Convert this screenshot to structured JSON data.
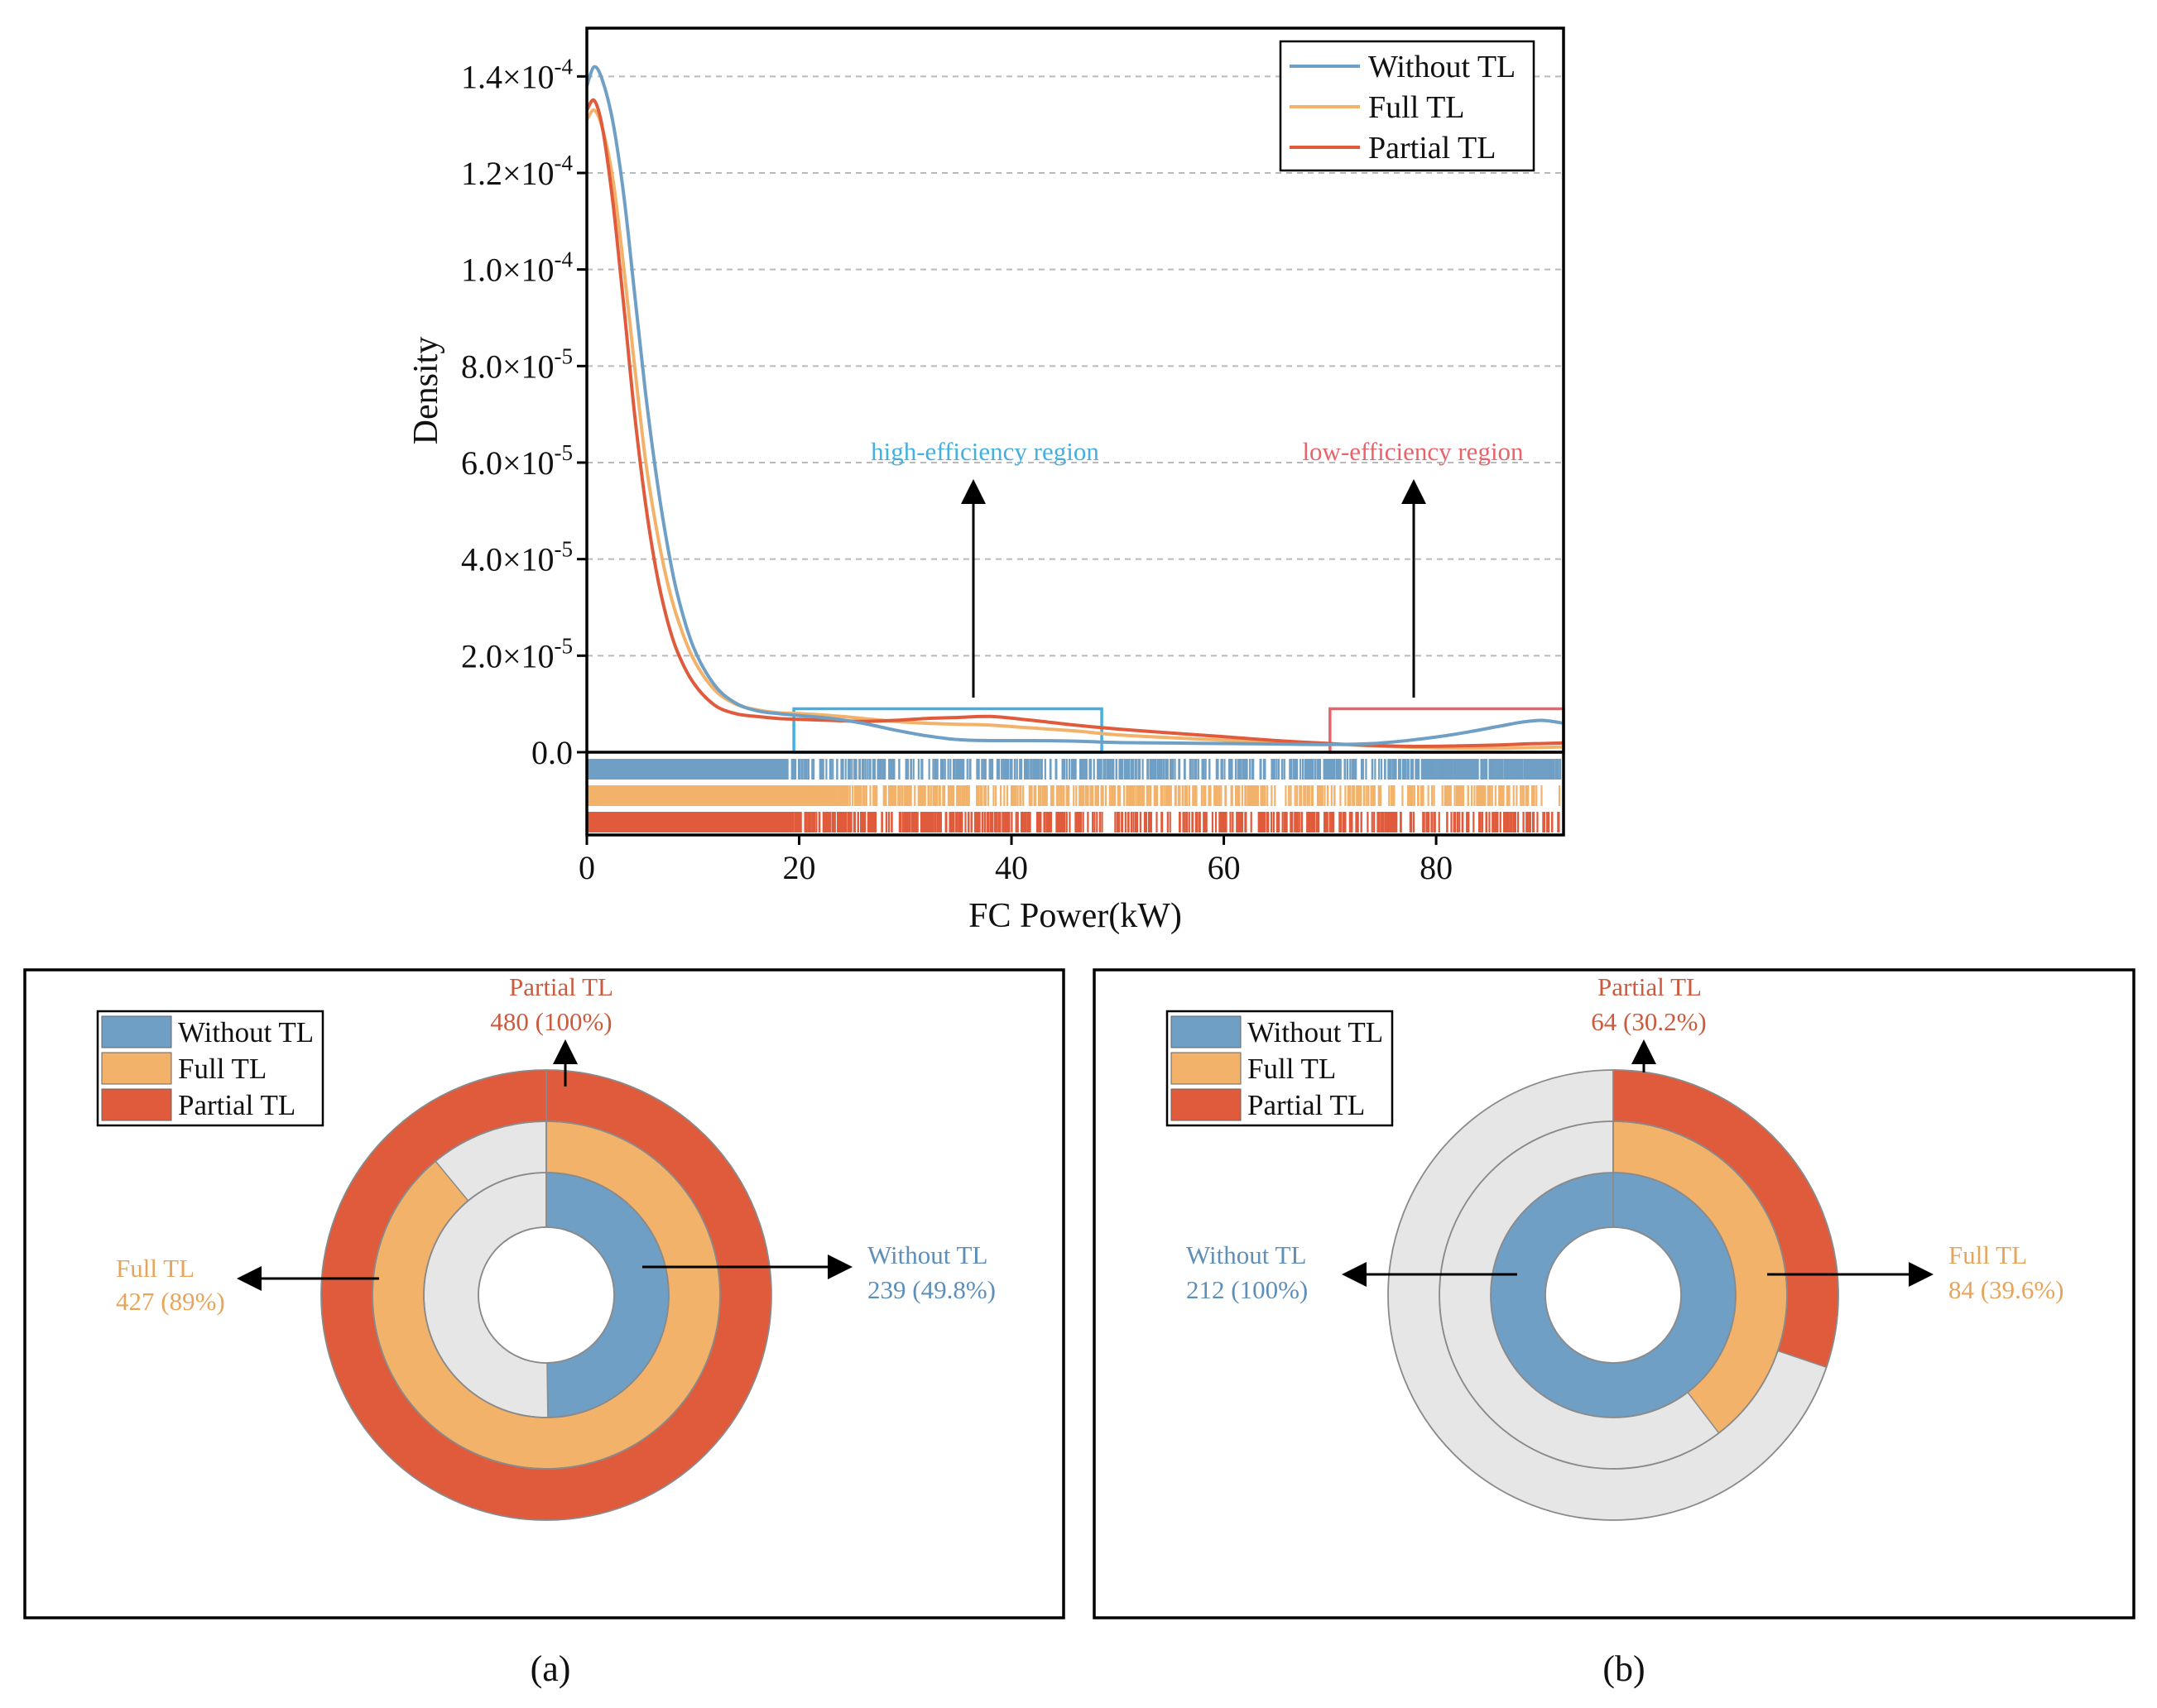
{
  "colors": {
    "without": "#6f9fc4",
    "full": "#f3b26a",
    "partial": "#e05a3c",
    "rest": "#e6e6e6",
    "high_region": "#45b0e0",
    "low_region": "#e8646c",
    "without_text": "#5d8fb9",
    "full_text": "#e6a55b",
    "partial_text": "#cc5a3f"
  },
  "chart_data": [
    {
      "type": "line",
      "title": "",
      "xlabel": "FC Power(kW)",
      "ylabel": "Density",
      "xlim": [
        0,
        92
      ],
      "ylim": [
        -1.8e-05,
        0.00015
      ],
      "x_ticks": [
        0,
        20,
        40,
        60,
        80
      ],
      "x_tick_labels": [
        "0",
        "20",
        "40",
        "60",
        "80"
      ],
      "y_ticks": [
        0,
        2e-05,
        4e-05,
        6e-05,
        8e-05,
        0.0001,
        0.00012,
        0.00014
      ],
      "y_tick_labels": [
        {
          "mant": "0.0",
          "exp": ""
        },
        {
          "mant": "2.0×10",
          "exp": "-5"
        },
        {
          "mant": "4.0×10",
          "exp": "-5"
        },
        {
          "mant": "6.0×10",
          "exp": "-5"
        },
        {
          "mant": "8.0×10",
          "exp": "-5"
        },
        {
          "mant": "1.0×10",
          "exp": "-4"
        },
        {
          "mant": "1.2×10",
          "exp": "-4"
        },
        {
          "mant": "1.4×10",
          "exp": "-4"
        }
      ],
      "grid": "horizontal dashed",
      "legend_position": "top-right",
      "series": [
        {
          "name": "Without TL",
          "key": "without",
          "x": [
            0,
            0.7,
            1.5,
            2.5,
            3.5,
            4.5,
            5.5,
            6.5,
            7.5,
            8.5,
            10,
            12,
            14,
            16,
            18,
            20,
            23,
            26,
            29,
            32,
            35,
            38,
            42,
            46,
            50,
            55,
            60,
            65,
            70,
            74,
            78,
            82,
            86,
            88,
            90,
            92
          ],
          "y": [
            0.000138,
            0.000142,
            0.000139,
            0.00013,
            0.000115,
            9.5e-05,
            7.5e-05,
            5.8e-05,
            4.4e-05,
            3.3e-05,
            2.2e-05,
            1.4e-05,
            1.02e-05,
            8.6e-06,
            8e-06,
            7.6e-06,
            7e-06,
            6e-06,
            4.6e-06,
            3.4e-06,
            2.6e-06,
            2.4e-06,
            2.4e-06,
            2.3e-06,
            2e-06,
            1.9e-06,
            1.8e-06,
            1.7e-06,
            1.6e-06,
            1.8e-06,
            2.6e-06,
            3.8e-06,
            5.4e-06,
            6.2e-06,
            6.6e-06,
            6e-06
          ]
        },
        {
          "name": "Full TL",
          "key": "full",
          "x": [
            0,
            0.7,
            1.5,
            2.5,
            3.5,
            4.5,
            5.5,
            6.5,
            7.5,
            8.5,
            10,
            12,
            14,
            16,
            18,
            20,
            23,
            26,
            29,
            32,
            35,
            38,
            42,
            46,
            50,
            55,
            60,
            65,
            70,
            74,
            78,
            82,
            86,
            88,
            90,
            92
          ],
          "y": [
            0.000131,
            0.000133,
            0.000129,
            0.000118,
            0.0001,
            8e-05,
            6.1e-05,
            4.7e-05,
            3.6e-05,
            2.8e-05,
            1.95e-05,
            1.3e-05,
            1e-05,
            8.8e-06,
            8.2e-06,
            8e-06,
            7.6e-06,
            7e-06,
            6.4e-06,
            6e-06,
            5.8e-06,
            5.6e-06,
            5e-06,
            4.4e-06,
            3.6e-06,
            3e-06,
            2.5e-06,
            2e-06,
            1.7e-06,
            1.3e-06,
            1e-06,
            8e-07,
            8e-07,
            9e-07,
            1e-06,
            1.1e-06
          ]
        },
        {
          "name": "Partial TL",
          "key": "partial",
          "x": [
            0,
            0.7,
            1.5,
            2.5,
            3.5,
            4.5,
            5.5,
            6.5,
            7.5,
            8.5,
            10,
            12,
            14,
            16,
            18,
            20,
            23,
            26,
            29,
            32,
            35,
            38,
            42,
            46,
            50,
            55,
            60,
            65,
            70,
            74,
            78,
            82,
            86,
            88,
            90,
            92
          ],
          "y": [
            0.000133,
            0.000135,
            0.000129,
            0.000113,
            9.2e-05,
            7e-05,
            5.2e-05,
            3.8e-05,
            2.8e-05,
            2.1e-05,
            1.45e-05,
            9.8e-06,
            8e-06,
            7.4e-06,
            7e-06,
            6.8e-06,
            6.6e-06,
            6.4e-06,
            6.6e-06,
            7e-06,
            7.2e-06,
            7.4e-06,
            6.6e-06,
            5.6e-06,
            4.8e-06,
            4e-06,
            3.2e-06,
            2.4e-06,
            1.8e-06,
            1.4e-06,
            1.2e-06,
            1.3e-06,
            1.5e-06,
            1.7e-06,
            1.8e-06,
            1.9e-06
          ]
        }
      ],
      "rug_rows": [
        "without",
        "full",
        "partial"
      ],
      "annotations": [
        {
          "text": "high-efficiency region",
          "x_range": [
            19.5,
            48.5
          ],
          "y_range": [
            0,
            9e-06
          ],
          "color_key": "high_region"
        },
        {
          "text": "low-efficiency region",
          "x_range": [
            70,
            92
          ],
          "y_range": [
            0,
            9e-06
          ],
          "color_key": "low_region"
        }
      ]
    },
    {
      "type": "pie",
      "subtype": "nested-donut",
      "panel_label": "(a)",
      "rings": [
        {
          "name": "Without TL",
          "key": "without",
          "count": "239",
          "pct_text": "(49.8%)",
          "fraction": 0.498
        },
        {
          "name": "Full TL",
          "key": "full",
          "count": "427",
          "pct_text": "(89%)",
          "fraction": 0.89
        },
        {
          "name": "Partial TL",
          "key": "partial",
          "count": "480",
          "pct_text": "(100%)",
          "fraction": 1.0
        }
      ]
    },
    {
      "type": "pie",
      "subtype": "nested-donut",
      "panel_label": "(b)",
      "rings": [
        {
          "name": "Without TL",
          "key": "without",
          "count": "212",
          "pct_text": "(100%)",
          "fraction": 1.0
        },
        {
          "name": "Full TL",
          "key": "full",
          "count": "84",
          "pct_text": "(39.6%)",
          "fraction": 0.396
        },
        {
          "name": "Partial TL",
          "key": "partial",
          "count": "64",
          "pct_text": "(30.2%)",
          "fraction": 0.302
        }
      ]
    }
  ],
  "legend": [
    "Without TL",
    "Full TL",
    "Partial TL"
  ]
}
